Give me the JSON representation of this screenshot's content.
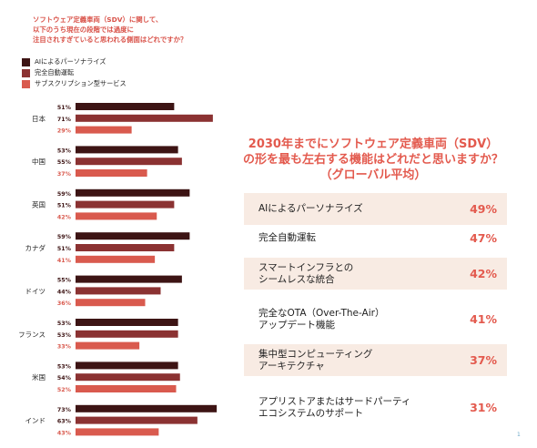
{
  "chart_data": [
    {
      "type": "bar",
      "orientation": "horizontal",
      "title_lines": [
        "ソフトウェア定義車両（SDV）に関して、",
        "以下のうち現在の段階では過度に",
        "注目されすぎていると思われる側面はどれですか？"
      ],
      "categories": [
        "日本",
        "中国",
        "英国",
        "カナダ",
        "ドイツ",
        "フランス",
        "米国",
        "インド"
      ],
      "series": [
        {
          "name": "AIによるパーソナライズ",
          "color": "#3d1414",
          "values": [
            51,
            53,
            59,
            59,
            55,
            53,
            53,
            73
          ]
        },
        {
          "name": "完全自動運転",
          "color": "#8b3232",
          "values": [
            71,
            55,
            51,
            51,
            44,
            53,
            54,
            63
          ]
        },
        {
          "name": "サブスクリプション型サービス",
          "color": "#d95a4e",
          "values": [
            29,
            37,
            42,
            41,
            36,
            33,
            52,
            43
          ]
        }
      ],
      "value_suffix": "%",
      "legend": "top-left",
      "xlim": [
        0,
        80
      ],
      "grid": false
    },
    {
      "type": "table",
      "title_lines": [
        "2030年までにソフトウェア定義車両（SDV）",
        "の形を最も左右する機能はどれだと思いますか？",
        "（グローバル平均）"
      ],
      "rows": [
        {
          "label": "AIによるパーソナライズ",
          "value": "49%",
          "shaded": true
        },
        {
          "label": "完全自動運転",
          "value": "47%",
          "shaded": false
        },
        {
          "label": "スマートインフラとの\nシームレスな統合",
          "value": "42%",
          "shaded": true
        },
        {
          "label": "完全なOTA（Over-The-Air）\nアップデート機能",
          "value": "41%",
          "shaded": false
        },
        {
          "label": "集中型コンピューティング\nアーキテクチャ",
          "value": "37%",
          "shaded": true
        },
        {
          "label": "アプリストアまたはサードパーティ\nエコシステムのサポート",
          "value": "31%",
          "shaded": false
        }
      ],
      "accent_color": "#e35a4e",
      "shade_color": "#f8ebe3"
    }
  ],
  "page_mark": "1"
}
